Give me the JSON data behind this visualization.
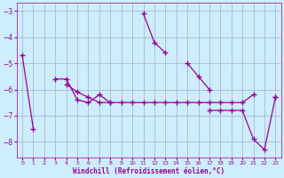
{
  "xlabel": "Windchill (Refroidissement éolien,°C)",
  "background_color": "#cceeff",
  "line_color": "#990099",
  "grid_color": "#aaaacc",
  "x_values": [
    0,
    1,
    2,
    3,
    4,
    5,
    6,
    7,
    8,
    9,
    10,
    11,
    12,
    13,
    14,
    15,
    16,
    17,
    18,
    19,
    20,
    21,
    22,
    23
  ],
  "series": [
    [
      -4.7,
      -7.5,
      null,
      null,
      null,
      null,
      null,
      null,
      null,
      null,
      null,
      -3.1,
      -4.2,
      -4.6,
      null,
      -5.0,
      -5.5,
      -6.0,
      null,
      null,
      null,
      null,
      null,
      -6.3
    ],
    [
      null,
      null,
      null,
      -5.6,
      -5.6,
      -6.4,
      -6.5,
      -6.2,
      -6.5,
      null,
      null,
      null,
      null,
      null,
      null,
      null,
      null,
      null,
      null,
      null,
      null,
      null,
      null,
      null
    ],
    [
      null,
      null,
      null,
      null,
      -5.8,
      -6.1,
      -6.3,
      -6.5,
      -6.5,
      -6.5,
      -6.5,
      -6.5,
      -6.5,
      -6.5,
      -6.5,
      -6.5,
      -6.5,
      -6.5,
      -6.5,
      -6.5,
      -6.5,
      -6.2,
      null,
      null
    ],
    [
      null,
      null,
      null,
      null,
      null,
      null,
      null,
      null,
      null,
      null,
      null,
      null,
      null,
      null,
      null,
      null,
      null,
      -6.8,
      -6.8,
      -6.8,
      -6.8,
      -7.9,
      -8.3,
      -6.3
    ]
  ],
  "ylim": [
    -8.6,
    -2.7
  ],
  "xlim": [
    -0.5,
    23.5
  ],
  "yticks": [
    -8,
    -7,
    -6,
    -5,
    -4,
    -3
  ],
  "xticks": [
    0,
    1,
    2,
    3,
    4,
    5,
    6,
    7,
    8,
    9,
    10,
    11,
    12,
    13,
    14,
    15,
    16,
    17,
    18,
    19,
    20,
    21,
    22,
    23
  ],
  "figsize": [
    3.2,
    2.0
  ],
  "dpi": 100
}
